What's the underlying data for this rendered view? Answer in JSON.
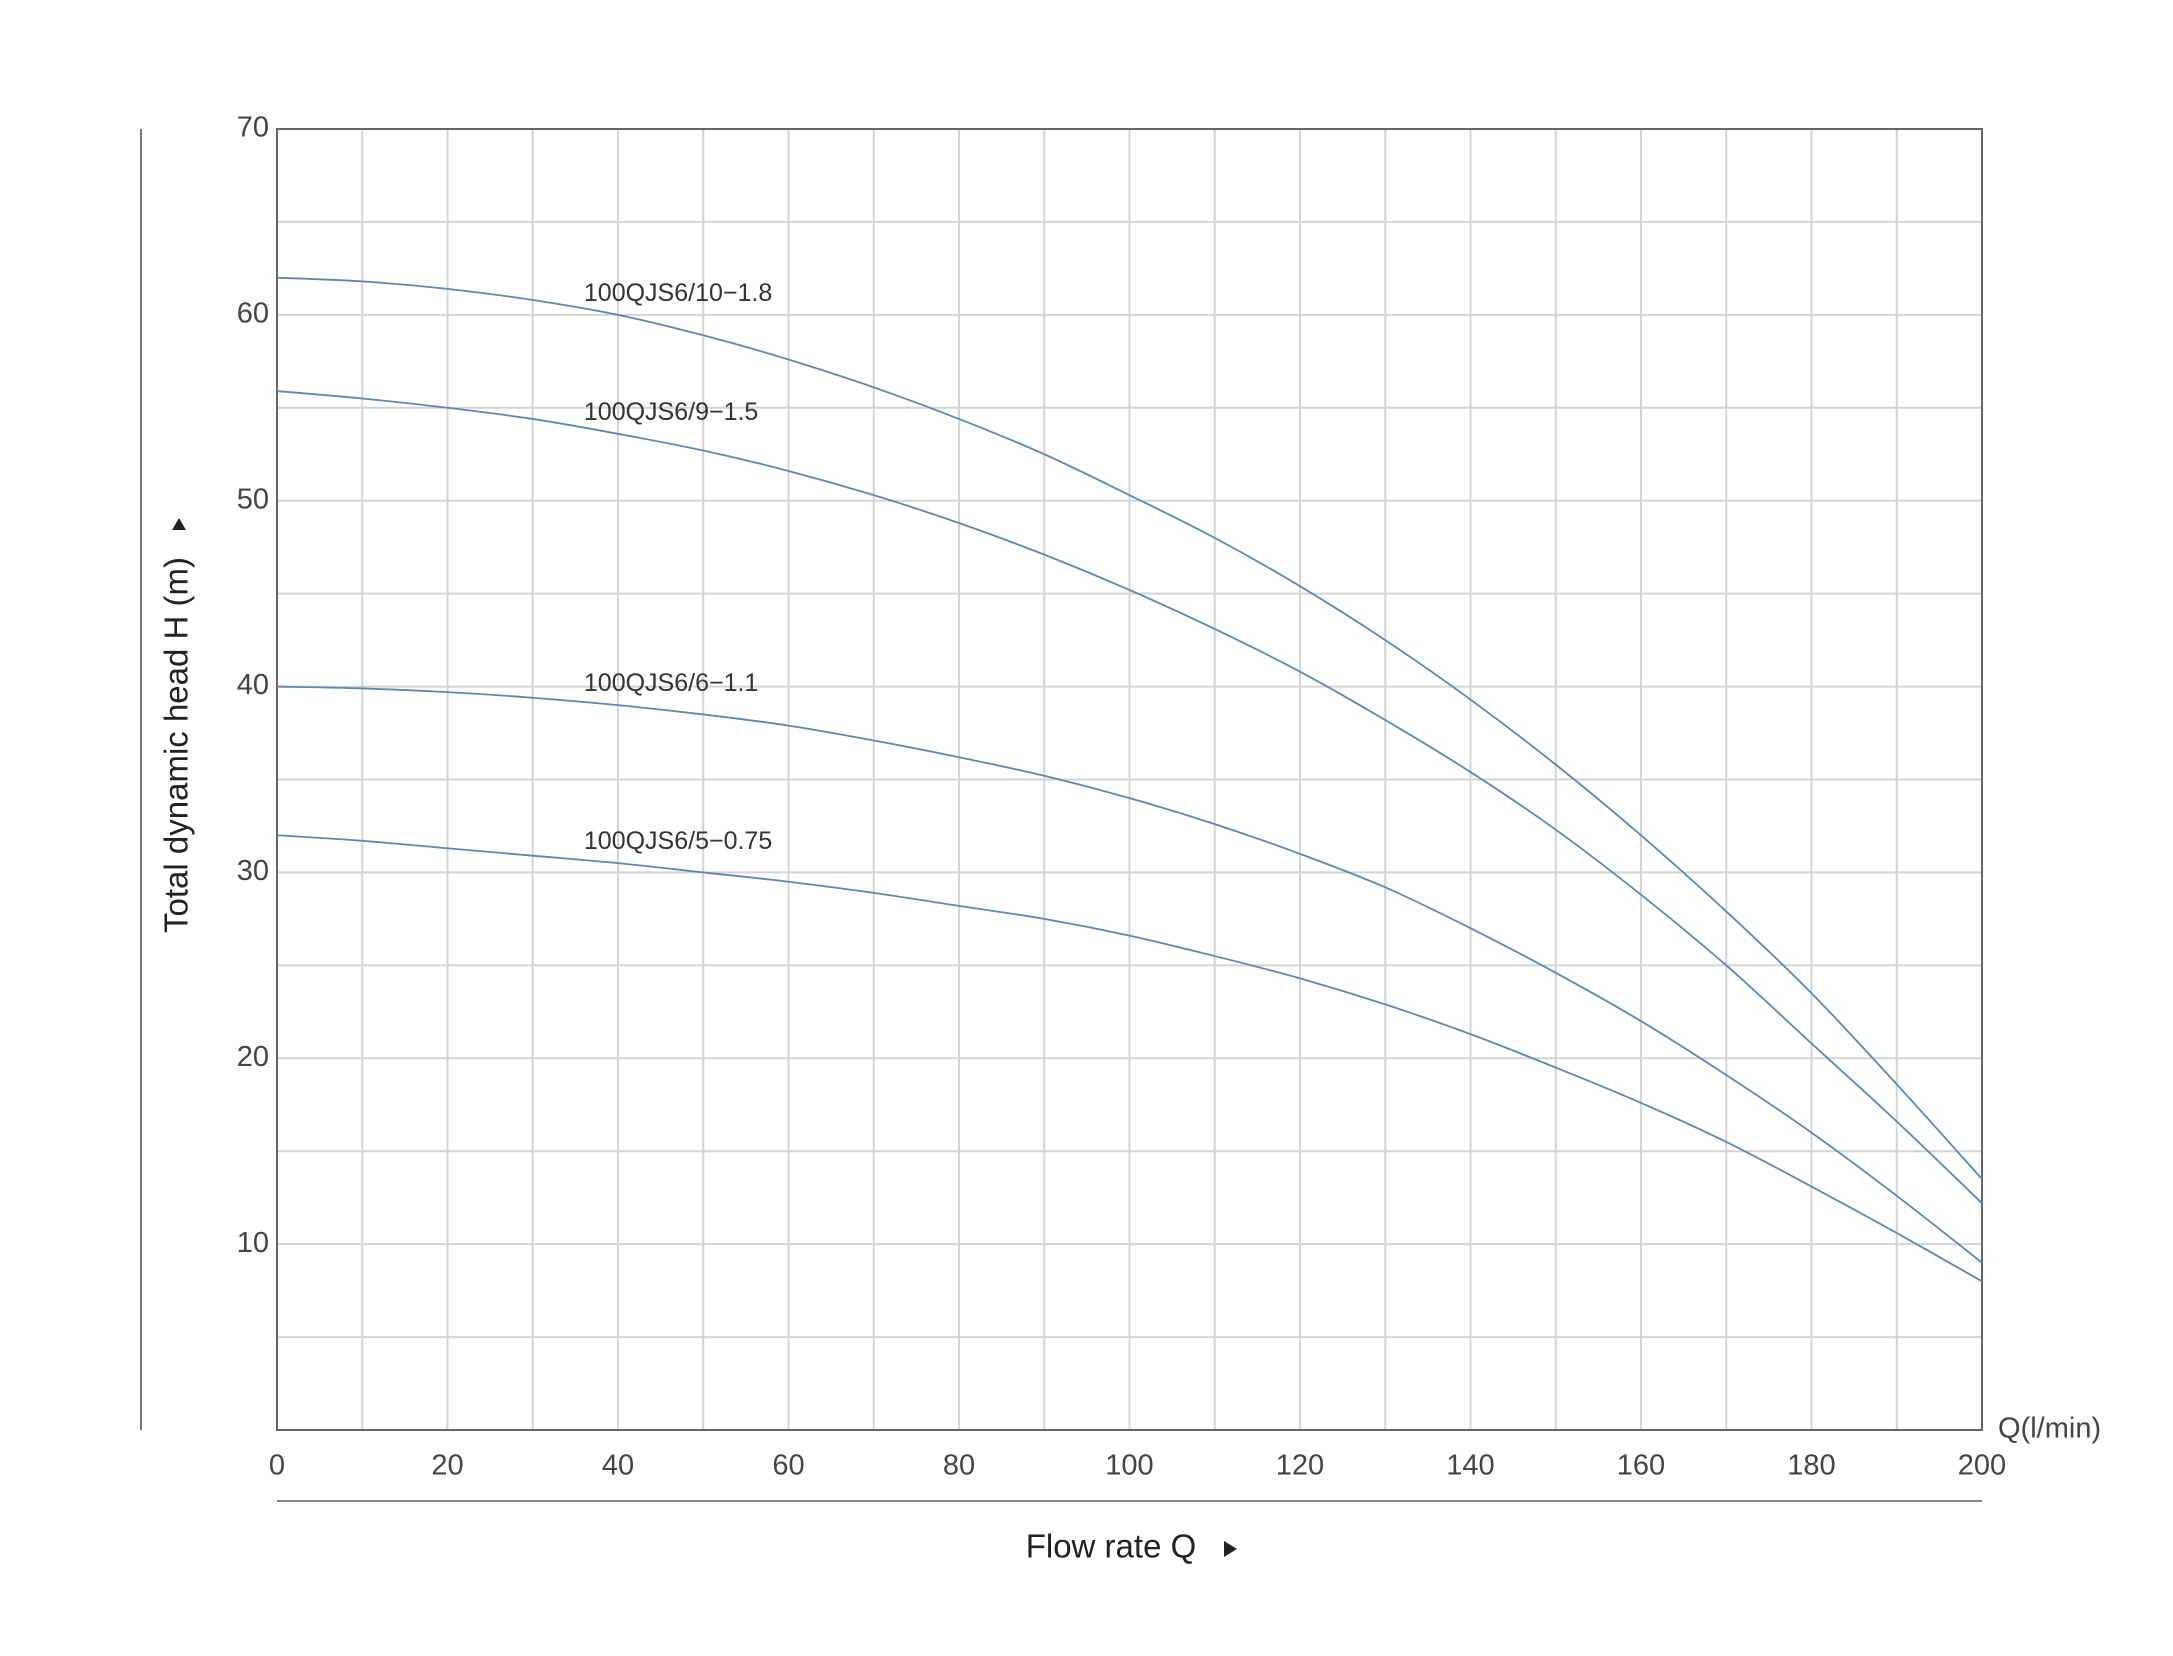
{
  "chart_data": {
    "type": "line",
    "y_label": "Total dynamic head H (m)",
    "x_label": "Flow rate Q",
    "x_unit_label": "Q(l/min)",
    "x": [
      0,
      10,
      20,
      30,
      40,
      50,
      60,
      70,
      80,
      90,
      100,
      110,
      120,
      130,
      140,
      150,
      160,
      170,
      180,
      190,
      200
    ],
    "series": [
      {
        "name": "100QJS6/10−1.8",
        "color": "#5b88b5",
        "values": [
          62,
          61.8,
          61.4,
          60.8,
          60,
          58.9,
          57.6,
          56.1,
          54.4,
          52.5,
          50.3,
          48,
          45.4,
          42.5,
          39.3,
          35.8,
          32,
          27.9,
          23.5,
          18.6,
          13.5
        ]
      },
      {
        "name": "100QJS6/9−1.5",
        "color": "#5b88b5",
        "values": [
          55.9,
          55.5,
          55,
          54.4,
          53.6,
          52.7,
          51.6,
          50.3,
          48.8,
          47.1,
          45.2,
          43.1,
          40.8,
          38.2,
          35.4,
          32.3,
          28.8,
          25,
          20.8,
          16.6,
          12.2
        ]
      },
      {
        "name": "100QJS6/6−1.1",
        "color": "#5b88b5",
        "values": [
          40,
          39.9,
          39.7,
          39.4,
          39,
          38.5,
          37.9,
          37.1,
          36.2,
          35.2,
          34,
          32.6,
          31,
          29.2,
          27,
          24.6,
          22,
          19.1,
          16,
          12.6,
          9
        ]
      },
      {
        "name": "100QJS6/5−0.75",
        "color": "#5b88b5",
        "values": [
          32,
          31.7,
          31.3,
          30.9,
          30.5,
          30,
          29.5,
          28.9,
          28.2,
          27.5,
          26.6,
          25.5,
          24.3,
          22.9,
          21.3,
          19.5,
          17.6,
          15.5,
          13.1,
          10.6,
          8
        ]
      }
    ],
    "xlim": [
      0,
      200
    ],
    "ylim": [
      0,
      70
    ],
    "xticks": [
      0,
      20,
      40,
      60,
      80,
      100,
      120,
      140,
      160,
      180,
      200
    ],
    "yticks": [
      10,
      20,
      30,
      40,
      50,
      60,
      70
    ],
    "xgrid": [
      0,
      10,
      20,
      30,
      40,
      50,
      60,
      70,
      80,
      90,
      100,
      110,
      120,
      130,
      140,
      150,
      160,
      170,
      180,
      190,
      200
    ],
    "ygrid": [
      0,
      5,
      10,
      15,
      20,
      25,
      30,
      35,
      40,
      45,
      50,
      55,
      60,
      65,
      70
    ],
    "grid": true
  }
}
